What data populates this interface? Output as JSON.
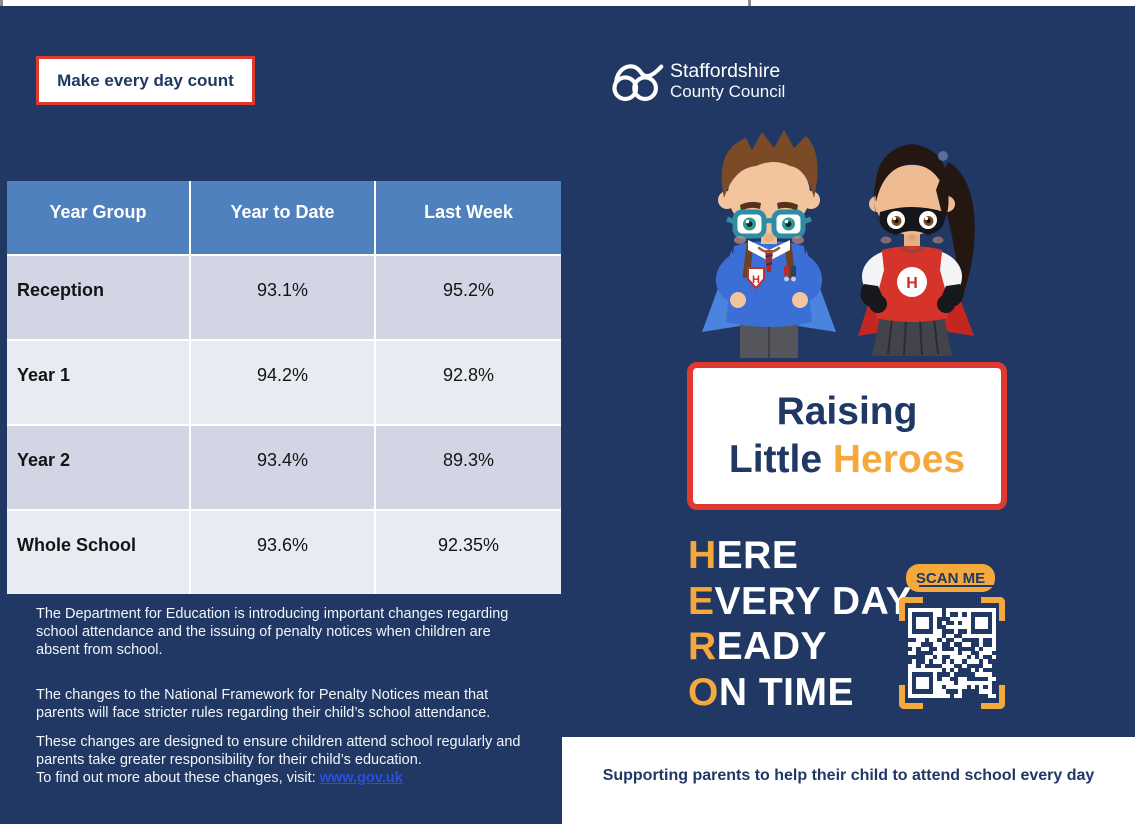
{
  "colors": {
    "navy_background": "#203863",
    "table_header_blue": "#4E81BD",
    "table_row_dark": "#D2D6E4",
    "table_row_light": "#E9EBF3",
    "accent_red": "#E03A30",
    "accent_orange": "#F5A93D",
    "link_blue": "#2D4DE0"
  },
  "header": {
    "slogan_badge": "Make every day count",
    "council_logo": {
      "line1": "Staffordshire",
      "line2": "County Council"
    }
  },
  "attendance_table": {
    "columns": [
      "Year Group",
      "Year to Date",
      "Last Week"
    ],
    "rows": [
      {
        "group": "Reception",
        "ytd": "93.1%",
        "last_week": "95.2%"
      },
      {
        "group": "Year 1",
        "ytd": "94.2%",
        "last_week": "92.8%"
      },
      {
        "group": "Year 2",
        "ytd": "93.4%",
        "last_week": "89.3%"
      },
      {
        "group": "Whole School",
        "ytd": "93.6%",
        "last_week": "92.35%"
      }
    ]
  },
  "info": {
    "paragraphs": [
      "The Department for Education is introducing important changes regarding school attendance and the issuing of penalty notices when children are absent from school.",
      "The changes to the National Framework for Penalty Notices mean that parents will face stricter rules regarding their child’s school attendance.",
      "These changes are designed to ensure children attend school regularly and parents take greater responsibility for their child’s education."
    ],
    "find_out_more_prefix": "To find out more about these changes, visit: ",
    "link_text": "www.gov.uk"
  },
  "campaign": {
    "title_line1": "Raising",
    "title_line2_navy": "Little",
    "title_line2_orange": "Heroes",
    "badge_letter": "H",
    "acronym": [
      {
        "initial": "H",
        "rest": "ERE"
      },
      {
        "initial": "E",
        "rest": "VERY DAY"
      },
      {
        "initial": "R",
        "rest": "EADY"
      },
      {
        "initial": "O",
        "rest": "N TIME"
      }
    ],
    "scan_label": "SCAN ME"
  },
  "footer": {
    "message": "Supporting parents to help their child to attend school every day"
  }
}
